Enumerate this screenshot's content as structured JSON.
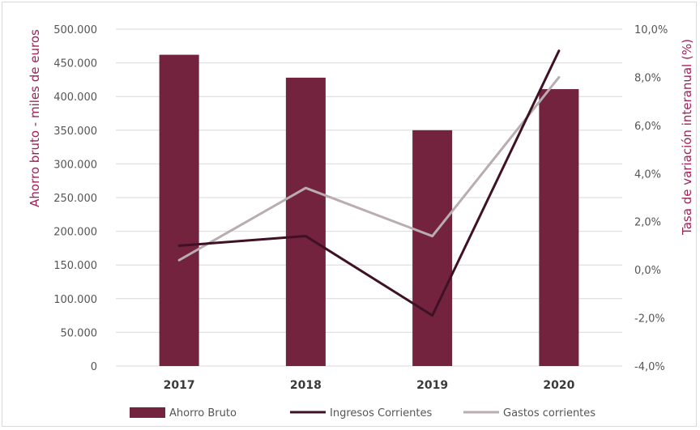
{
  "chart_data": {
    "type": "bar",
    "categories": [
      "2017",
      "2018",
      "2019",
      "2020"
    ],
    "series": [
      {
        "name": "Ahorro Bruto",
        "type": "bar",
        "axis": "left",
        "values": [
          462000,
          428000,
          350000,
          411000
        ],
        "color": "#74233f"
      },
      {
        "name": "Ingresos Corrientes",
        "type": "line",
        "axis": "right",
        "values": [
          1.0,
          1.4,
          -1.9,
          9.1
        ],
        "color": "#3f1125"
      },
      {
        "name": "Gastos corrientes",
        "type": "line",
        "axis": "right",
        "values": [
          0.4,
          3.4,
          1.4,
          8.0
        ],
        "color": "#b9adb1"
      }
    ],
    "ylabel": "Ahorro bruto - miles de euros",
    "y2label": "Tasa de variación interanual (%)",
    "ylim": [
      0,
      500000
    ],
    "y2lim": [
      -4,
      10
    ],
    "yticks": [
      "0",
      "50.000",
      "100.000",
      "150.000",
      "200.000",
      "250.000",
      "300.000",
      "350.000",
      "400.000",
      "450.000",
      "500.000"
    ],
    "y2ticks": [
      "-4,0%",
      "-2,0%",
      "0,0%",
      "2,0%",
      "4,0%",
      "6,0%",
      "8,0%",
      "10,0%"
    ],
    "grid": true,
    "legend": "bottom",
    "colors": {
      "axis_text": "#a0205a",
      "tick_text": "#555555",
      "gridline": "#d9d9d9",
      "category_text": "#3a3a3a"
    }
  }
}
